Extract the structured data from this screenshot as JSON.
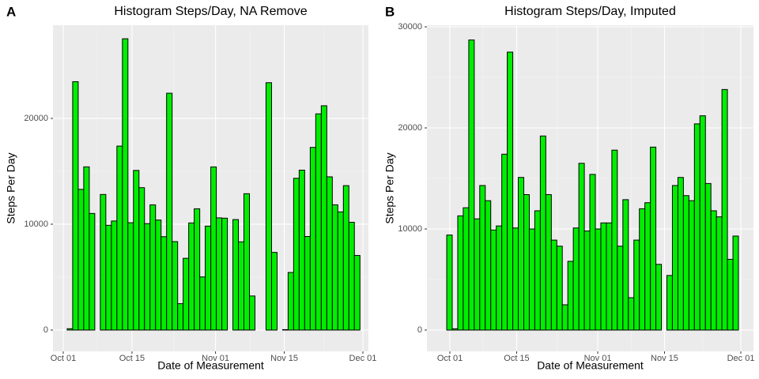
{
  "chart_data": [
    {
      "type": "histogram",
      "tag": "A",
      "title": "Histogram Steps/Day, NA Remove",
      "x_label": "Date of Measurement",
      "y_label": "Steps Per Day",
      "bins": [
        0.8,
        1.92,
        3.05,
        4.17,
        5.3,
        6.42,
        7.55,
        8.67,
        9.8,
        10.92,
        12.05,
        13.17,
        14.29,
        15.42,
        16.54,
        17.67,
        18.79,
        19.92,
        21.04,
        22.17,
        23.29,
        24.41,
        25.54,
        26.66,
        27.79,
        28.91,
        30.04,
        31.16,
        32.29,
        33.41,
        34.54,
        35.66,
        36.78,
        37.91,
        39.03,
        40.16,
        41.28,
        42.41,
        43.53,
        44.66,
        45.78,
        46.9,
        48.03,
        49.15,
        50.28,
        51.4,
        52.53,
        53.65,
        54.78,
        55.9,
        57.03,
        58.15,
        59.27,
        60.4
      ],
      "values": [
        126,
        23468,
        13294,
        15420,
        11015,
        0,
        12811,
        9900,
        10304,
        17382,
        27524,
        10139,
        15084,
        13452,
        10056,
        11829,
        10395,
        8821,
        22378,
        8355,
        2492,
        6778,
        10119,
        11458,
        5018,
        9819,
        15414,
        10600,
        10571,
        0,
        10439,
        8334,
        12883,
        3219,
        0,
        0,
        23373,
        7336,
        0,
        41,
        5441,
        14339,
        15110,
        8841,
        17259,
        20427,
        21194,
        14478,
        11834,
        11162,
        13646,
        10183,
        7047
      ],
      "color": "#00ee00",
      "edge_color": "#000000",
      "xlim": [
        -2.09,
        62.13
      ],
      "xticks": [
        {
          "value": 0,
          "label": "Oct 01"
        },
        {
          "value": 14,
          "label": "Oct 15"
        },
        {
          "value": 31,
          "label": "Nov 01"
        },
        {
          "value": 45,
          "label": "Nov 15"
        },
        {
          "value": 61,
          "label": "Dec 01"
        }
      ],
      "ylim": [
        -2015,
        28800
      ],
      "yticks": [
        0,
        10000,
        20000
      ],
      "grid": true
    },
    {
      "type": "histogram",
      "tag": "B",
      "title": "Histogram Steps/Day, Imputed",
      "x_label": "Date of Measurement",
      "y_label": "Steps Per Day",
      "bins": [
        -0.66,
        0.49,
        1.65,
        2.8,
        3.96,
        5.11,
        6.26,
        7.42,
        8.57,
        9.73,
        10.88,
        12.03,
        13.19,
        14.34,
        15.5,
        16.65,
        17.8,
        18.96,
        20.11,
        21.27,
        22.42,
        23.57,
        24.73,
        25.88,
        27.04,
        28.19,
        29.34,
        30.5,
        31.65,
        32.81,
        33.96,
        35.11,
        36.27,
        37.42,
        38.58,
        39.73,
        40.88,
        42.04,
        43.19,
        44.35,
        45.5,
        46.65,
        47.81,
        48.96,
        50.12,
        51.27,
        52.42,
        53.58,
        54.73,
        55.89,
        57.04,
        58.19,
        59.35,
        60.5
      ],
      "values": [
        9400,
        126,
        11300,
        12100,
        28700,
        11000,
        14300,
        12800,
        9900,
        10300,
        17400,
        27500,
        10100,
        15100,
        13400,
        10000,
        11800,
        19200,
        13400,
        8900,
        8300,
        2500,
        6800,
        10100,
        16500,
        9800,
        15400,
        10000,
        10600,
        10600,
        17800,
        8300,
        12900,
        3200,
        8900,
        12000,
        12600,
        18100,
        6500,
        0,
        5400,
        14300,
        15100,
        13300,
        12800,
        20400,
        21200,
        14500,
        11800,
        11200,
        23800,
        7000,
        9300
      ],
      "color": "#00ee00",
      "edge_color": "#000000",
      "xlim": [
        -4.81,
        63.65
      ],
      "xticks": [
        {
          "value": 0,
          "label": "Oct 01"
        },
        {
          "value": 14,
          "label": "Oct 15"
        },
        {
          "value": 31,
          "label": "Nov 01"
        },
        {
          "value": 45,
          "label": "Nov 15"
        },
        {
          "value": 61,
          "label": "Dec 01"
        }
      ],
      "ylim": [
        -2109,
        30156
      ],
      "yticks": [
        0,
        10000,
        20000,
        30000
      ],
      "grid": true
    }
  ]
}
